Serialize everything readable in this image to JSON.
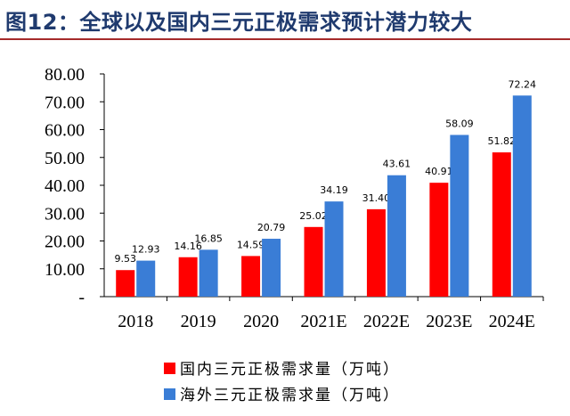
{
  "header": {
    "title": "图12：全球以及国内三元正极需求预计潜力较大"
  },
  "colors": {
    "title": "#1f3a6e",
    "rule": "#a52a2a"
  },
  "chart_data": {
    "type": "bar",
    "categories": [
      "2018",
      "2019",
      "2020",
      "2021E",
      "2022E",
      "2023E",
      "2024E"
    ],
    "series": [
      {
        "name": "国内三元正极需求量（万吨）",
        "color": "#ff0000",
        "values": [
          9.53,
          14.16,
          14.59,
          25.02,
          31.4,
          40.91,
          51.82
        ],
        "labels": [
          "9.53",
          "14.16",
          "14.59",
          "25.02",
          "31.40",
          "40.91",
          "51.82"
        ]
      },
      {
        "name": "海外三元正极需求量（万吨）",
        "color": "#3a7dd6",
        "values": [
          12.93,
          16.85,
          20.79,
          34.19,
          43.61,
          58.09,
          72.24
        ],
        "labels": [
          "12.93",
          "16.85",
          "20.79",
          "34.19",
          "43.61",
          "58.09",
          "72.24"
        ]
      }
    ],
    "ylim": [
      0,
      80
    ],
    "yticks": [
      0,
      10,
      20,
      30,
      40,
      50,
      60,
      70,
      80
    ],
    "ytick_labels": [
      "-",
      "10.00",
      "20.00",
      "30.00",
      "40.00",
      "50.00",
      "60.00",
      "70.00",
      "80.00"
    ],
    "grid": false,
    "legend_position": "bottom",
    "title": "",
    "xlabel": "",
    "ylabel": ""
  }
}
